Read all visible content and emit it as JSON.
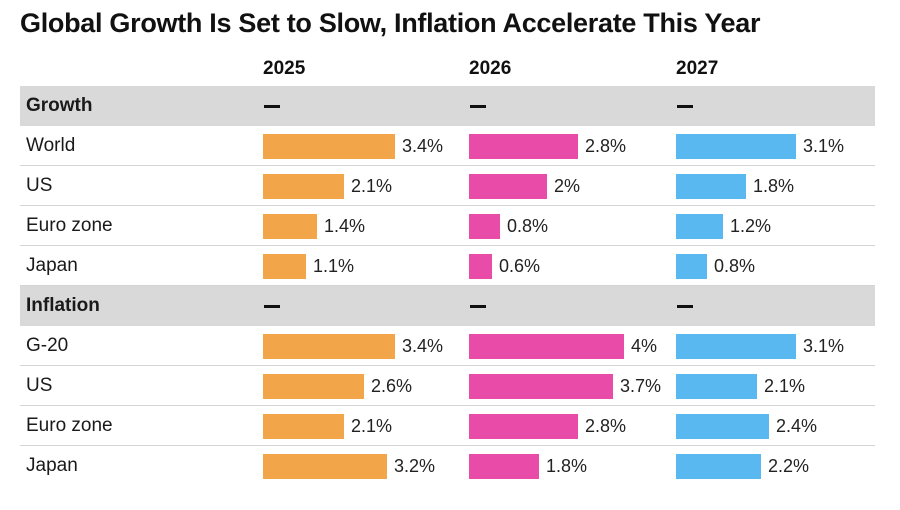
{
  "title": "Global Growth Is Set to Slow, Inflation Accelerate This Year",
  "colors": {
    "2025": "#f2a649",
    "2026": "#e84ca8",
    "2027": "#5ab8f0",
    "section_bg": "#d9d9d9"
  },
  "chart_data": {
    "type": "bar",
    "title": "Global Growth Is Set to Slow, Inflation Accelerate This Year",
    "columns": [
      "2025",
      "2026",
      "2027"
    ],
    "sections": [
      {
        "name": "Growth",
        "placeholder": "—",
        "rows": [
          {
            "label": "World",
            "values": [
              3.4,
              2.8,
              3.1
            ],
            "display": [
              "3.4%",
              "2.8%",
              "3.1%"
            ]
          },
          {
            "label": "US",
            "values": [
              2.1,
              2.0,
              1.8
            ],
            "display": [
              "2.1%",
              "2%",
              "1.8%"
            ]
          },
          {
            "label": "Euro zone",
            "values": [
              1.4,
              0.8,
              1.2
            ],
            "display": [
              "1.4%",
              "0.8%",
              "1.2%"
            ]
          },
          {
            "label": "Japan",
            "values": [
              1.1,
              0.6,
              0.8
            ],
            "display": [
              "1.1%",
              "0.6%",
              "0.8%"
            ]
          }
        ]
      },
      {
        "name": "Inflation",
        "placeholder": "—",
        "rows": [
          {
            "label": "G-20",
            "values": [
              3.4,
              4.0,
              3.1
            ],
            "display": [
              "3.4%",
              "4%",
              "3.1%"
            ]
          },
          {
            "label": "US",
            "values": [
              2.6,
              3.7,
              2.1
            ],
            "display": [
              "2.6%",
              "3.7%",
              "2.1%"
            ]
          },
          {
            "label": "Euro zone",
            "values": [
              2.1,
              2.8,
              2.4
            ],
            "display": [
              "2.1%",
              "2.8%",
              "2.4%"
            ]
          },
          {
            "label": "Japan",
            "values": [
              3.2,
              1.8,
              2.2
            ],
            "display": [
              "3.2%",
              "1.8%",
              "2.2%"
            ]
          }
        ]
      }
    ]
  }
}
